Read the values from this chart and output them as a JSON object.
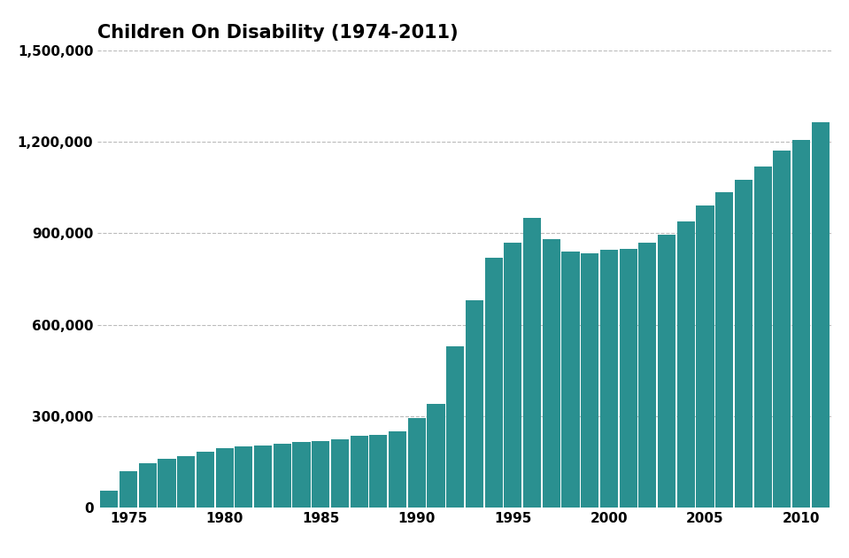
{
  "title": "Children On Disability (1974-2011)",
  "title_fontsize": 15,
  "bar_color": "#2a9090",
  "background_color": "#ffffff",
  "grid_color": "#bbbbbb",
  "years": [
    1974,
    1975,
    1976,
    1977,
    1978,
    1979,
    1980,
    1981,
    1982,
    1983,
    1984,
    1985,
    1986,
    1987,
    1988,
    1989,
    1990,
    1991,
    1992,
    1993,
    1994,
    1995,
    1996,
    1997,
    1998,
    1999,
    2000,
    2001,
    2002,
    2003,
    2004,
    2005,
    2006,
    2007,
    2008,
    2009,
    2010,
    2011
  ],
  "values": [
    55000,
    120000,
    145000,
    160000,
    170000,
    185000,
    195000,
    200000,
    205000,
    210000,
    215000,
    220000,
    225000,
    235000,
    240000,
    250000,
    295000,
    340000,
    530000,
    680000,
    820000,
    870000,
    950000,
    880000,
    840000,
    835000,
    845000,
    850000,
    870000,
    895000,
    940000,
    990000,
    1035000,
    1075000,
    1120000,
    1170000,
    1205000,
    1265000
  ],
  "ylim": [
    0,
    1500000
  ],
  "yticks": [
    0,
    300000,
    600000,
    900000,
    1200000,
    1500000
  ],
  "xtick_years": [
    1975,
    1980,
    1985,
    1990,
    1995,
    2000,
    2005,
    2010
  ],
  "bar_width": 0.93
}
